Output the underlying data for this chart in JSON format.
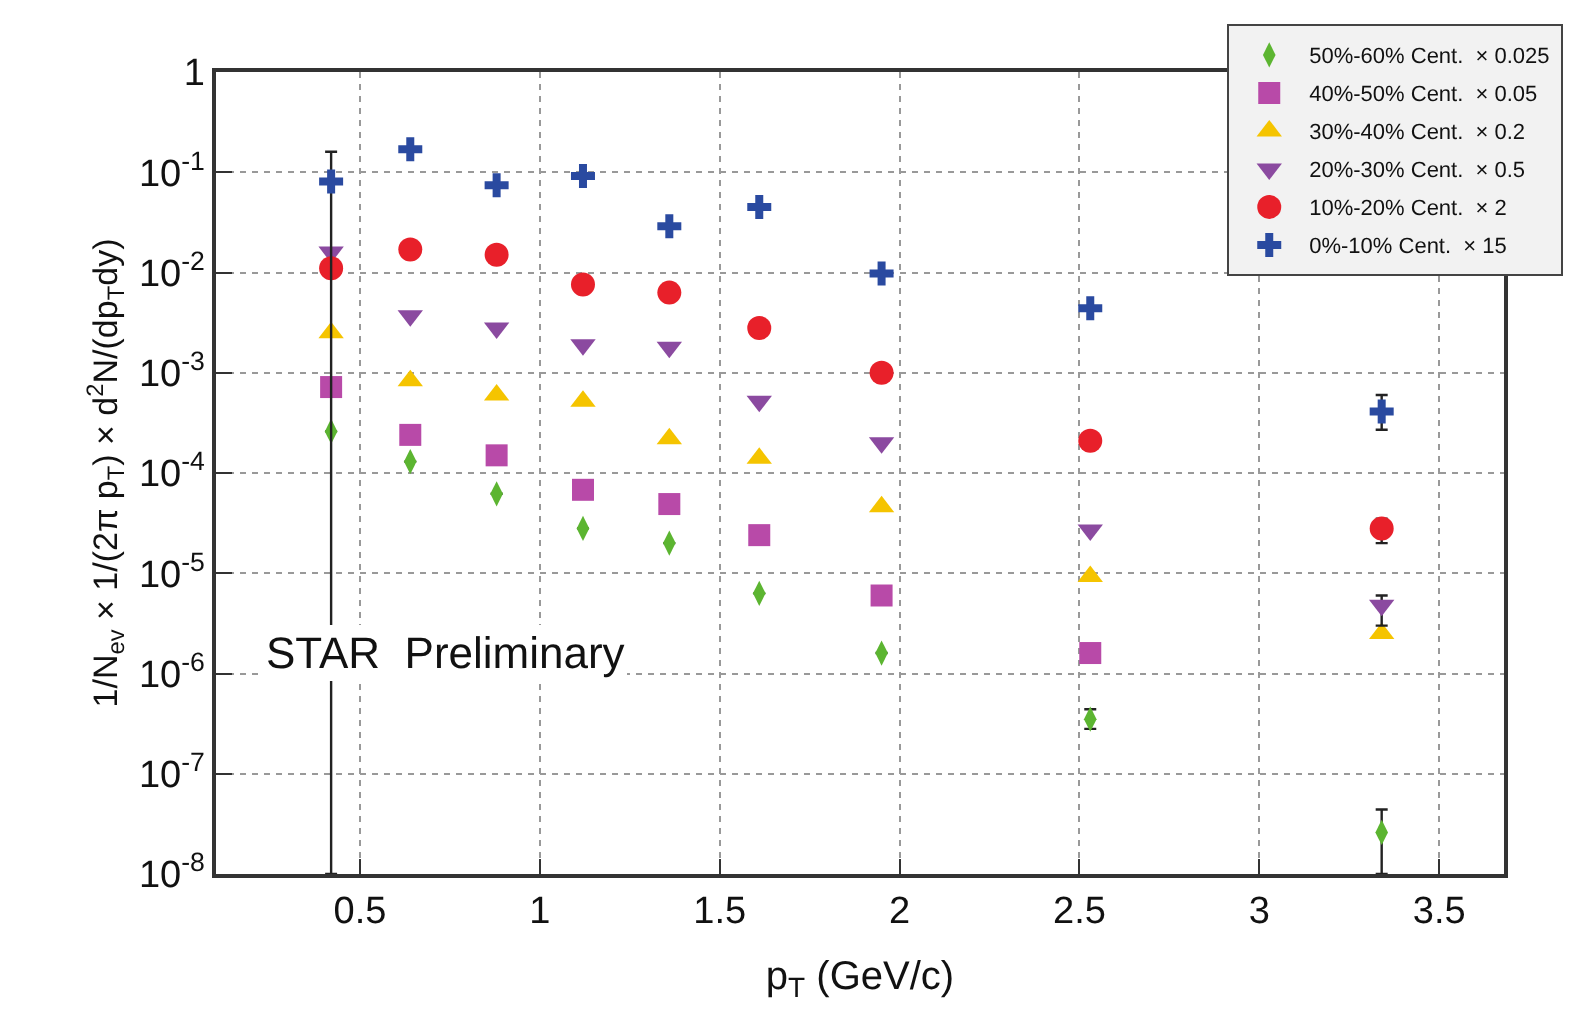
{
  "chart_data": {
    "type": "scatter",
    "xlabel": "p$_{T}$ (GeV/c)",
    "ylabel": "1/N$_{ev}$ × 1/(2π p$_{T}$) × d$^{2}$N/(dp$_{T}$dy)",
    "x": [
      0.42,
      0.64,
      0.88,
      1.12,
      1.36,
      1.61,
      1.95,
      2.53,
      3.34
    ],
    "series": [
      {
        "name": "50%-60% Cent.  × 0.025",
        "color": "#5cb531",
        "marker": "diamond",
        "values": [
          0.00026,
          0.00013,
          6.2e-05,
          2.8e-05,
          2e-05,
          6.3e-06,
          1.6e-06,
          3.5e-07,
          2.6e-08
        ],
        "errors": [
          null,
          null,
          null,
          null,
          null,
          null,
          null,
          [
            2.8e-07,
            4.4e-07
          ],
          [
            1e-08,
            4.4e-08
          ]
        ]
      },
      {
        "name": "40%-50% Cent.  × 0.05",
        "color": "#b84aa8",
        "marker": "square",
        "values": [
          0.00072,
          0.00024,
          0.00015,
          6.8e-05,
          4.9e-05,
          2.4e-05,
          6e-06,
          1.6e-06,
          null
        ]
      },
      {
        "name": "30%-40% Cent.  × 0.2",
        "color": "#f5c400",
        "marker": "triangle",
        "values": [
          0.0025,
          0.00083,
          0.0006,
          0.00052,
          0.00022,
          0.00014,
          4.6e-05,
          9.3e-06,
          2.5e-06
        ]
      },
      {
        "name": "20%-30% Cent.  × 0.5",
        "color": "#8b4aa0",
        "marker": "triangle-down",
        "values": [
          0.016,
          0.0037,
          0.0028,
          0.0019,
          0.0018,
          0.00052,
          0.0002,
          2.7e-05,
          4.8e-06
        ],
        "errors": [
          null,
          null,
          null,
          null,
          null,
          null,
          null,
          null,
          [
            3e-06,
            6e-06
          ]
        ]
      },
      {
        "name": "10%-20% Cent.  × 2",
        "color": "#e8202a",
        "marker": "circle",
        "values": [
          0.011,
          0.017,
          0.015,
          0.0076,
          0.0063,
          0.0028,
          0.001,
          0.00021,
          2.8e-05
        ],
        "errors": [
          null,
          null,
          null,
          null,
          null,
          null,
          null,
          null,
          [
            2e-05,
            3.5e-05
          ]
        ]
      },
      {
        "name": "0%-10% Cent.  × 15",
        "color": "#2a4aa0",
        "marker": "cross",
        "values": [
          0.081,
          0.17,
          0.074,
          0.092,
          0.029,
          0.045,
          0.0098,
          0.0044,
          0.00041
        ],
        "errors": [
          [
            1e-08,
            0.16
          ],
          null,
          null,
          null,
          null,
          null,
          null,
          null,
          [
            0.00027,
            0.0006
          ]
        ]
      }
    ],
    "log": "y",
    "xlim": [
      0.1,
      3.68
    ],
    "xticks": [
      0.5,
      1,
      1.5,
      2,
      2.5,
      3,
      3.5
    ],
    "ylim": [
      1e-08,
      1
    ],
    "yticks": [
      1,
      {
        "value": 0.1,
        "label": "10$^{-1}$"
      },
      {
        "value": 0.01,
        "label": "10$^{-2}$"
      },
      {
        "value": 0.001,
        "label": "10$^{-3}$"
      },
      {
        "value": 0.0001,
        "label": "10$^{-4}$"
      },
      {
        "value": 1e-05,
        "label": "10$^{-5}$"
      },
      {
        "value": 1e-06,
        "label": "10$^{-6}$"
      },
      {
        "value": 1e-07,
        "label": "10$^{-7}$"
      },
      {
        "value": 1e-08,
        "label": "10$^{-8}$"
      }
    ],
    "grid": true,
    "legend": "top right",
    "annotations": [
      "STAR  Preliminary"
    ]
  }
}
